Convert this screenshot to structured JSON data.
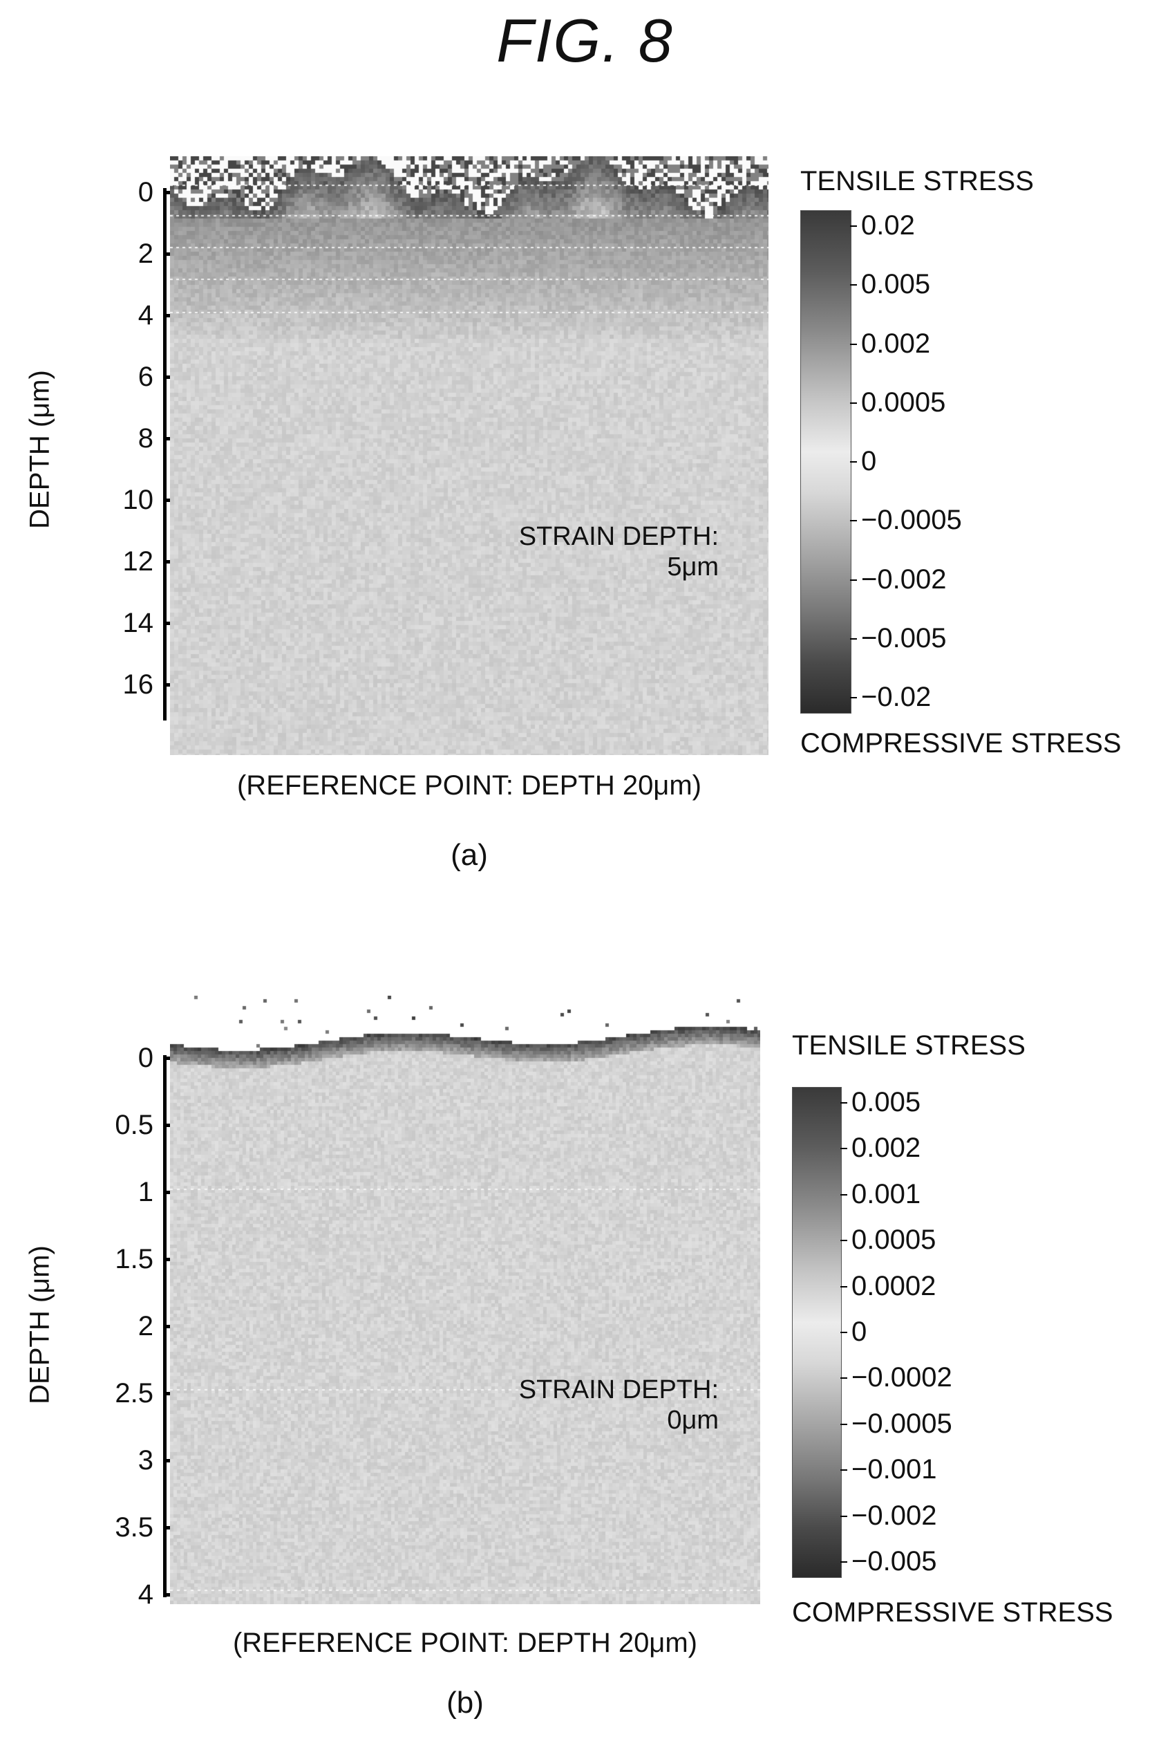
{
  "figure_title": "FIG. 8",
  "panels": [
    {
      "tag": "(a)",
      "ylabel": "DEPTH (μm)",
      "yticks": [
        "0",
        "2",
        "4",
        "6",
        "8",
        "10",
        "12",
        "14",
        "16"
      ],
      "annotation_line1": "STRAIN DEPTH:",
      "annotation_line2": "5μm",
      "reference_note": "(REFERENCE POINT: DEPTH 20μm)",
      "colorbar_top": "TENSILE STRESS",
      "colorbar_bottom": "COMPRESSIVE STRESS",
      "colorbar_labels": [
        "0.02",
        "0.005",
        "0.002",
        "0.0005",
        "0",
        "−0.0005",
        "−0.002",
        "−0.005",
        "−0.02"
      ],
      "strain_depth_um": 5,
      "depth_range_um": [
        0,
        17
      ],
      "reference_depth_um": 20
    },
    {
      "tag": "(b)",
      "ylabel": "DEPTH (μm)",
      "yticks": [
        "0",
        "0.5",
        "1",
        "1.5",
        "2",
        "2.5",
        "3",
        "3.5",
        "4"
      ],
      "annotation_line1": "STRAIN DEPTH:",
      "annotation_line2": "0μm",
      "reference_note": "(REFERENCE POINT: DEPTH 20μm)",
      "colorbar_top": "TENSILE STRESS",
      "colorbar_bottom": "COMPRESSIVE STRESS",
      "colorbar_labels": [
        "0.005",
        "0.002",
        "0.001",
        "0.0005",
        "0.0002",
        "0",
        "−0.0002",
        "−0.0005",
        "−0.001",
        "−0.002",
        "−0.005"
      ],
      "strain_depth_um": 0,
      "depth_range_um": [
        0,
        4
      ],
      "reference_depth_um": 20
    }
  ],
  "colors": {
    "text": "#111111",
    "background": "#ffffff",
    "map_base": "#d2d2d2",
    "map_dark": "#2a2a2a"
  }
}
